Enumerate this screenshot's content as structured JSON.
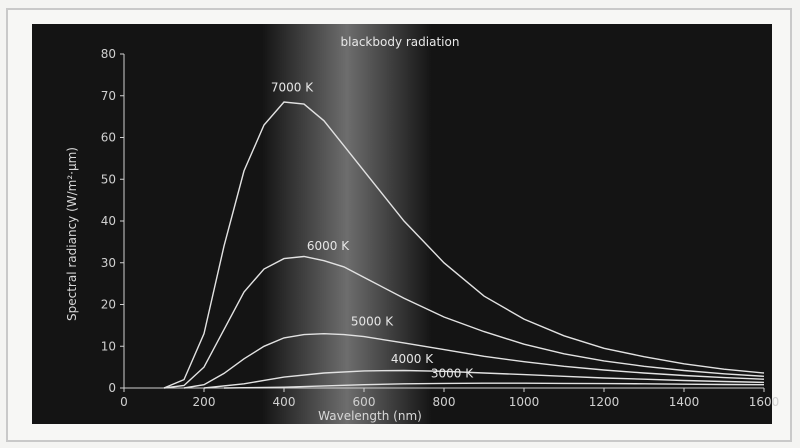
{
  "chart_data": {
    "type": "line",
    "title": "blackbody radiation",
    "xlabel": "Wavelength (nm)",
    "ylabel": "Spectral radiancy (W/m²·μm)",
    "xlim": [
      0,
      1600
    ],
    "ylim": [
      0,
      80
    ],
    "x_ticks": [
      0,
      200,
      400,
      600,
      800,
      1000,
      1200,
      1400,
      1600
    ],
    "y_ticks": [
      0,
      10,
      20,
      30,
      40,
      50,
      60,
      70,
      80
    ],
    "series": [
      {
        "name": "7000 K",
        "label_at": [
          420,
          71
        ],
        "points": [
          [
            100,
            0
          ],
          [
            150,
            2
          ],
          [
            200,
            13
          ],
          [
            250,
            34
          ],
          [
            300,
            52
          ],
          [
            350,
            63
          ],
          [
            400,
            68.5
          ],
          [
            450,
            68
          ],
          [
            500,
            64
          ],
          [
            550,
            58
          ],
          [
            600,
            52
          ],
          [
            700,
            40
          ],
          [
            800,
            30
          ],
          [
            900,
            22
          ],
          [
            1000,
            16.5
          ],
          [
            1100,
            12.5
          ],
          [
            1200,
            9.5
          ],
          [
            1300,
            7.5
          ],
          [
            1400,
            5.8
          ],
          [
            1500,
            4.5
          ],
          [
            1600,
            3.6
          ]
        ]
      },
      {
        "name": "6000 K",
        "label_at": [
          510,
          33
        ],
        "points": [
          [
            100,
            0
          ],
          [
            150,
            0.6
          ],
          [
            200,
            5
          ],
          [
            250,
            14
          ],
          [
            300,
            23
          ],
          [
            350,
            28.5
          ],
          [
            400,
            31
          ],
          [
            450,
            31.5
          ],
          [
            500,
            30.5
          ],
          [
            550,
            29
          ],
          [
            600,
            26.5
          ],
          [
            700,
            21.5
          ],
          [
            800,
            17
          ],
          [
            900,
            13.5
          ],
          [
            1000,
            10.5
          ],
          [
            1100,
            8.2
          ],
          [
            1200,
            6.5
          ],
          [
            1300,
            5.2
          ],
          [
            1400,
            4.2
          ],
          [
            1500,
            3.4
          ],
          [
            1600,
            2.8
          ]
        ]
      },
      {
        "name": "5000 K",
        "label_at": [
          620,
          15
        ],
        "points": [
          [
            150,
            0
          ],
          [
            200,
            0.8
          ],
          [
            250,
            3.5
          ],
          [
            300,
            7
          ],
          [
            350,
            10
          ],
          [
            400,
            12
          ],
          [
            450,
            12.8
          ],
          [
            500,
            13
          ],
          [
            550,
            12.8
          ],
          [
            600,
            12.3
          ],
          [
            700,
            10.8
          ],
          [
            800,
            9.2
          ],
          [
            900,
            7.6
          ],
          [
            1000,
            6.3
          ],
          [
            1100,
            5.2
          ],
          [
            1200,
            4.3
          ],
          [
            1300,
            3.6
          ],
          [
            1400,
            3.0
          ],
          [
            1500,
            2.5
          ],
          [
            1600,
            2.1
          ]
        ]
      },
      {
        "name": "4000 K",
        "label_at": [
          720,
          6
        ],
        "points": [
          [
            200,
            0
          ],
          [
            300,
            1
          ],
          [
            400,
            2.6
          ],
          [
            500,
            3.6
          ],
          [
            600,
            4.1
          ],
          [
            700,
            4.2
          ],
          [
            800,
            4.0
          ],
          [
            900,
            3.6
          ],
          [
            1000,
            3.2
          ],
          [
            1100,
            2.8
          ],
          [
            1200,
            2.4
          ],
          [
            1300,
            2.1
          ],
          [
            1400,
            1.8
          ],
          [
            1500,
            1.55
          ],
          [
            1600,
            1.35
          ]
        ]
      },
      {
        "name": "3000 K",
        "label_at": [
          820,
          2.5
        ],
        "points": [
          [
            250,
            0
          ],
          [
            400,
            0.2
          ],
          [
            500,
            0.5
          ],
          [
            600,
            0.8
          ],
          [
            700,
            1.0
          ],
          [
            800,
            1.1
          ],
          [
            900,
            1.15
          ],
          [
            1000,
            1.15
          ],
          [
            1100,
            1.1
          ],
          [
            1200,
            1.05
          ],
          [
            1300,
            1.0
          ],
          [
            1400,
            0.92
          ],
          [
            1500,
            0.85
          ],
          [
            1600,
            0.78
          ]
        ]
      }
    ]
  }
}
